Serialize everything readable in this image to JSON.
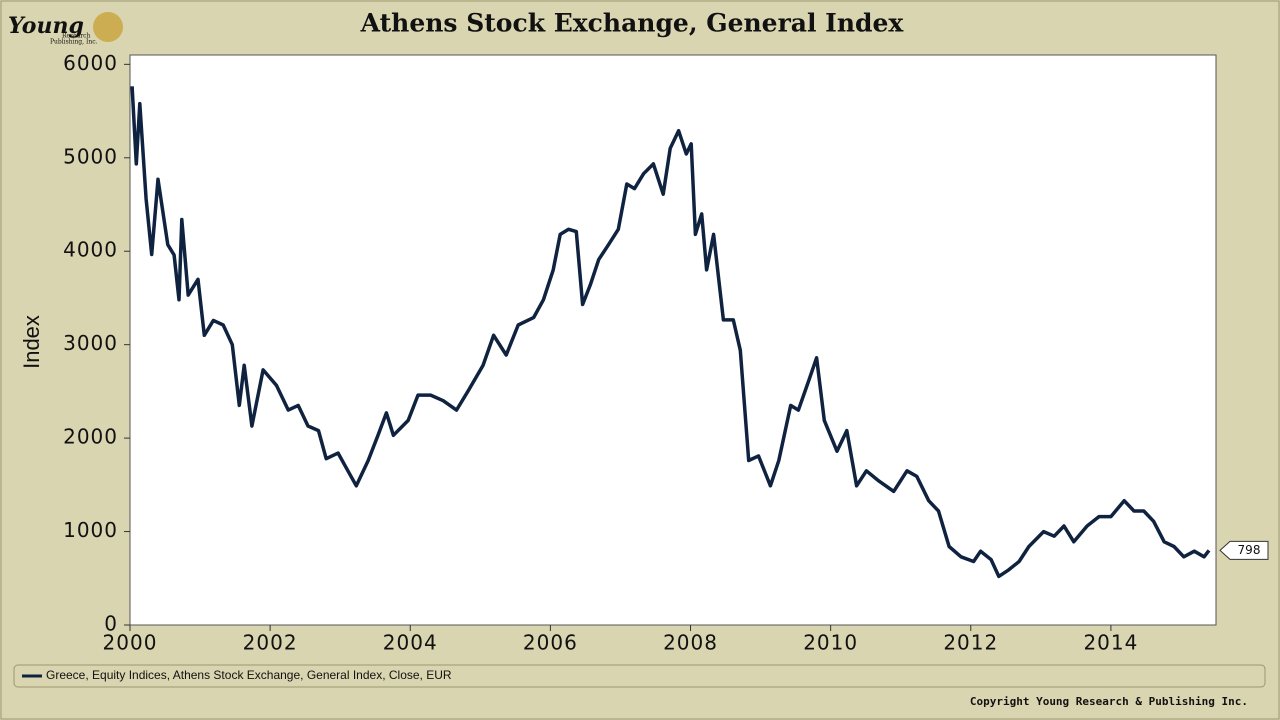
{
  "logo": {
    "name": "Young",
    "line1": "Research",
    "line2": "Publishing, Inc."
  },
  "footer": "Copyright Young Research & Publishing Inc.",
  "chart_data": {
    "type": "line",
    "title": "Athens Stock Exchange, General Index",
    "y_label": "Index",
    "x": [
      2000.03,
      2000.09,
      2000.14,
      2000.23,
      2000.31,
      2000.4,
      2000.54,
      2000.63,
      2000.7,
      2000.74,
      2000.83,
      2000.97,
      2001.06,
      2001.19,
      2001.33,
      2001.46,
      2001.56,
      2001.63,
      2001.74,
      2001.9,
      2002.09,
      2002.26,
      2002.4,
      2002.54,
      2002.69,
      2002.8,
      2002.97,
      2003.11,
      2003.23,
      2003.4,
      2003.54,
      2003.66,
      2003.76,
      2003.97,
      2004.11,
      2004.29,
      2004.47,
      2004.66,
      2004.83,
      2005.04,
      2005.19,
      2005.37,
      2005.54,
      2005.76,
      2005.9,
      2006.04,
      2006.14,
      2006.26,
      2006.37,
      2006.46,
      2006.57,
      2006.69,
      2006.83,
      2006.97,
      2007.09,
      2007.2,
      2007.33,
      2007.47,
      2007.61,
      2007.71,
      2007.83,
      2007.94,
      2008.01,
      2008.07,
      2008.16,
      2008.23,
      2008.33,
      2008.47,
      2008.61,
      2008.71,
      2008.83,
      2008.97,
      2009.14,
      2009.26,
      2009.43,
      2009.54,
      2009.69,
      2009.8,
      2009.91,
      2010.09,
      2010.23,
      2010.37,
      2010.51,
      2010.69,
      2010.9,
      2011.09,
      2011.23,
      2011.4,
      2011.54,
      2011.69,
      2011.86,
      2012.04,
      2012.14,
      2012.29,
      2012.4,
      2012.54,
      2012.69,
      2012.83,
      2013.04,
      2013.19,
      2013.33,
      2013.47,
      2013.66,
      2013.83,
      2014.0,
      2014.19,
      2014.33,
      2014.47,
      2014.61,
      2014.76,
      2014.9,
      2015.04,
      2015.19,
      2015.33,
      2015.4
    ],
    "series": [
      {
        "name": "Greece, Equity Indices, Athens Stock Exchange, General Index, Close, EUR",
        "color": "#0f2340",
        "values": [
          5765,
          4935,
          5580,
          4560,
          3965,
          4770,
          4070,
          3960,
          3480,
          4340,
          3530,
          3700,
          3100,
          3260,
          3210,
          3000,
          2350,
          2780,
          2130,
          2730,
          2565,
          2300,
          2350,
          2130,
          2080,
          1780,
          1840,
          1650,
          1490,
          1760,
          2030,
          2270,
          2030,
          2190,
          2460,
          2460,
          2400,
          2300,
          2510,
          2780,
          3100,
          2890,
          3210,
          3290,
          3480,
          3800,
          4180,
          4235,
          4210,
          3430,
          3640,
          3910,
          4070,
          4235,
          4720,
          4670,
          4830,
          4935,
          4610,
          5100,
          5290,
          5040,
          5150,
          4180,
          4400,
          3800,
          4180,
          3265,
          3265,
          2940,
          1760,
          1810,
          1490,
          1760,
          2350,
          2300,
          2620,
          2860,
          2190,
          1860,
          2080,
          1490,
          1650,
          1540,
          1430,
          1650,
          1590,
          1330,
          1220,
          840,
          730,
          680,
          790,
          700,
          520,
          590,
          680,
          840,
          1000,
          950,
          1060,
          890,
          1060,
          1160,
          1160,
          1330,
          1220,
          1220,
          1110,
          890,
          840,
          730,
          790,
          730,
          798
        ]
      }
    ],
    "xlim": [
      2000,
      2015.5
    ],
    "ylim": [
      0,
      6100
    ],
    "xticks": [
      2000,
      2002,
      2004,
      2006,
      2008,
      2010,
      2012,
      2014
    ],
    "yticks": [
      0,
      1000,
      2000,
      3000,
      4000,
      5000,
      6000
    ],
    "grid": false,
    "legend": "bottom"
  }
}
